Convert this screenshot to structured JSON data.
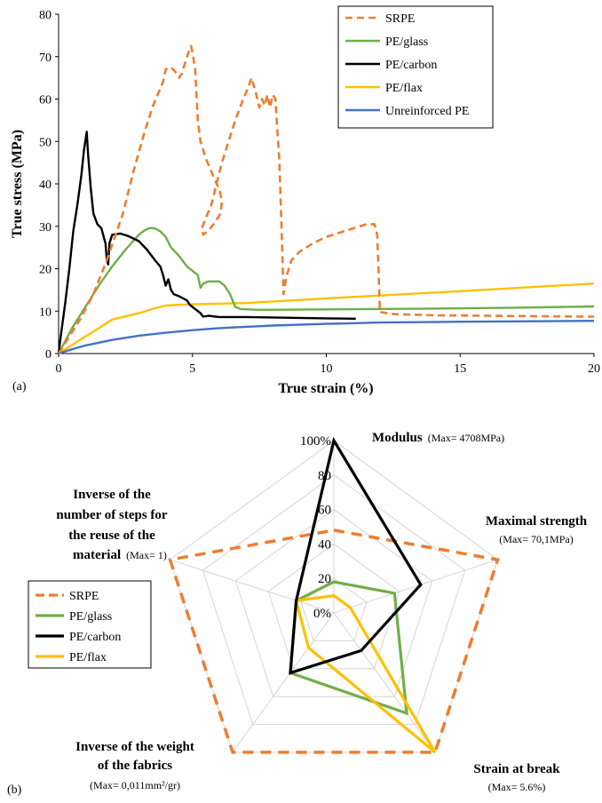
{
  "chart_data": [
    {
      "type": "line",
      "panel_label": "(a)",
      "xlabel": "True strain (%)",
      "ylabel": "True stress (MPa)",
      "xlim": [
        0,
        20
      ],
      "ylim": [
        0,
        80
      ],
      "xticks": [
        "0",
        "5",
        "10",
        "15",
        "20"
      ],
      "yticks": [
        "0",
        "10",
        "20",
        "30",
        "40",
        "50",
        "60",
        "70",
        "80"
      ],
      "grid": false,
      "legend_position": "top-right",
      "series": [
        {
          "name": "SRPE",
          "color": "#ED7D31",
          "style": "dashed",
          "points": [
            [
              0,
              0
            ],
            [
              0.8,
              8
            ],
            [
              1.3,
              14
            ],
            [
              1.8,
              22
            ],
            [
              2.4,
              33
            ],
            [
              2.8,
              43
            ],
            [
              3.2,
              52
            ],
            [
              3.5,
              58
            ],
            [
              3.9,
              64
            ],
            [
              4.0,
              67
            ],
            [
              4.2,
              67.5
            ],
            [
              4.35,
              66.5
            ],
            [
              4.5,
              65
            ],
            [
              4.6,
              66
            ],
            [
              4.75,
              69
            ],
            [
              4.85,
              71
            ],
            [
              4.95,
              72.5
            ],
            [
              5.0,
              71
            ],
            [
              5.1,
              67
            ],
            [
              5.2,
              55
            ],
            [
              5.3,
              50
            ],
            [
              5.5,
              46
            ],
            [
              5.7,
              43
            ],
            [
              5.9,
              40
            ],
            [
              6.0,
              39
            ],
            [
              6.1,
              36
            ],
            [
              6.05,
              33
            ],
            [
              5.85,
              31
            ],
            [
              5.6,
              29
            ],
            [
              5.4,
              28
            ],
            [
              5.35,
              29.5
            ],
            [
              5.5,
              32
            ],
            [
              5.7,
              35
            ],
            [
              5.9,
              40
            ],
            [
              6.1,
              45
            ],
            [
              6.3,
              49
            ],
            [
              6.6,
              55
            ],
            [
              6.9,
              60
            ],
            [
              7.1,
              63
            ],
            [
              7.2,
              65
            ],
            [
              7.35,
              62
            ],
            [
              7.5,
              58
            ],
            [
              7.6,
              60
            ],
            [
              7.7,
              58.5
            ],
            [
              7.8,
              61
            ],
            [
              7.9,
              58
            ],
            [
              8.0,
              61
            ],
            [
              8.1,
              60
            ],
            [
              8.25,
              45
            ],
            [
              8.35,
              25
            ],
            [
              8.4,
              14
            ],
            [
              8.5,
              18
            ],
            [
              8.7,
              22
            ],
            [
              9.0,
              24
            ],
            [
              9.5,
              26
            ],
            [
              10.0,
              27.5
            ],
            [
              10.5,
              28.5
            ],
            [
              11.0,
              29.5
            ],
            [
              11.5,
              30.5
            ],
            [
              11.8,
              30.5
            ],
            [
              11.9,
              28
            ],
            [
              11.95,
              20
            ],
            [
              12.0,
              9.8
            ],
            [
              12.5,
              9.3
            ],
            [
              14,
              9.0
            ],
            [
              16,
              8.9
            ],
            [
              18,
              8.8
            ],
            [
              20,
              8.7
            ]
          ]
        },
        {
          "name": "PE/glass",
          "color": "#70AD47",
          "style": "solid",
          "points": [
            [
              0,
              0
            ],
            [
              0.5,
              6
            ],
            [
              1.0,
              11
            ],
            [
              1.5,
              16
            ],
            [
              2.0,
              20.5
            ],
            [
              2.5,
              24.5
            ],
            [
              3.0,
              28
            ],
            [
              3.2,
              29
            ],
            [
              3.4,
              29.6
            ],
            [
              3.6,
              29.5
            ],
            [
              3.8,
              28.8
            ],
            [
              4.0,
              27.5
            ],
            [
              4.2,
              25
            ],
            [
              4.5,
              23
            ],
            [
              4.8,
              20.5
            ],
            [
              5.0,
              19.5
            ],
            [
              5.2,
              18.5
            ],
            [
              5.3,
              15.5
            ],
            [
              5.4,
              16.5
            ],
            [
              5.6,
              17
            ],
            [
              6.0,
              17
            ],
            [
              6.2,
              16
            ],
            [
              6.4,
              14
            ],
            [
              6.6,
              11
            ],
            [
              6.8,
              10.5
            ],
            [
              7.5,
              10.3
            ],
            [
              10,
              10.4
            ],
            [
              14,
              10.6
            ],
            [
              17,
              10.8
            ],
            [
              20,
              11.1
            ]
          ]
        },
        {
          "name": "PE/carbon",
          "color": "#000000",
          "style": "solid",
          "points": [
            [
              0,
              0
            ],
            [
              0.1,
              5
            ],
            [
              0.25,
              12
            ],
            [
              0.4,
              20
            ],
            [
              0.55,
              29
            ],
            [
              0.7,
              35
            ],
            [
              0.85,
              42
            ],
            [
              0.95,
              48
            ],
            [
              1.05,
              52.3
            ],
            [
              1.1,
              47
            ],
            [
              1.2,
              39
            ],
            [
              1.3,
              33
            ],
            [
              1.45,
              30.5
            ],
            [
              1.6,
              29.5
            ],
            [
              1.75,
              26
            ],
            [
              1.8,
              22
            ],
            [
              1.85,
              21
            ],
            [
              1.9,
              26
            ],
            [
              2.0,
              28
            ],
            [
              2.3,
              28.3
            ],
            [
              2.6,
              27.7
            ],
            [
              3.0,
              26.5
            ],
            [
              3.3,
              24.5
            ],
            [
              3.6,
              22
            ],
            [
              3.8,
              20.5
            ],
            [
              3.9,
              18.5
            ],
            [
              4.0,
              16
            ],
            [
              4.1,
              17.5
            ],
            [
              4.2,
              15
            ],
            [
              4.3,
              14
            ],
            [
              4.5,
              13.5
            ],
            [
              4.8,
              12.5
            ],
            [
              4.9,
              11.5
            ],
            [
              5.1,
              10.5
            ],
            [
              5.3,
              9.5
            ],
            [
              5.4,
              8.7
            ],
            [
              5.6,
              8.9
            ],
            [
              6,
              8.6
            ],
            [
              7,
              8.6
            ],
            [
              8,
              8.5
            ],
            [
              9,
              8.4
            ],
            [
              10,
              8.3
            ],
            [
              11.1,
              8.2
            ]
          ]
        },
        {
          "name": "PE/flax",
          "color": "#FFC000",
          "style": "solid",
          "points": [
            [
              0,
              0
            ],
            [
              0.5,
              2
            ],
            [
              1,
              4
            ],
            [
              2,
              8
            ],
            [
              3,
              9.5
            ],
            [
              3.5,
              10.5
            ],
            [
              4,
              11.3
            ],
            [
              4.5,
              11.5
            ],
            [
              5,
              11.6
            ],
            [
              7,
              11.9
            ],
            [
              10,
              13
            ],
            [
              15,
              14.7
            ],
            [
              20,
              16.5
            ]
          ]
        },
        {
          "name": "Unreinforced PE",
          "color": "#4472C4",
          "style": "solid",
          "points": [
            [
              0,
              0
            ],
            [
              0.5,
              1
            ],
            [
              1,
              1.9
            ],
            [
              2,
              3.2
            ],
            [
              3,
              4.2
            ],
            [
              4,
              4.9
            ],
            [
              5,
              5.5
            ],
            [
              6,
              6.0
            ],
            [
              7,
              6.3
            ],
            [
              8,
              6.6
            ],
            [
              10,
              7.0
            ],
            [
              12,
              7.3
            ],
            [
              15,
              7.5
            ],
            [
              20,
              7.7
            ]
          ]
        }
      ]
    },
    {
      "type": "radar",
      "panel_label": "(b)",
      "rlim": [
        0,
        100
      ],
      "rticks": [
        "0%",
        "20",
        "40",
        "60",
        "80",
        "100%"
      ],
      "legend_position": "left",
      "axes": [
        {
          "title": "Modulus",
          "sub": "(Max= 4708MPa)"
        },
        {
          "title": "Maximal strength",
          "sub": "(Max= 70,1MPa)"
        },
        {
          "title": "Strain at break",
          "sub": "(Max= 5.6%)"
        },
        {
          "title": "Inverse of the weight of the fabrics",
          "sub": "(Max= 0,011mm²/gr)"
        },
        {
          "title": "Inverse of the number of steps for the reuse of the material",
          "sub": "(Max= 1)"
        }
      ],
      "axis_title_lines": {
        "a0": [
          "Modulus"
        ],
        "a1": [
          "Maximal strength"
        ],
        "a2": [
          "Strain at break"
        ],
        "a3": [
          "Inverse of the weight",
          "of the fabrics"
        ],
        "a4": [
          "Inverse of the",
          "number of steps for",
          "the reuse of the",
          "material"
        ]
      },
      "series": [
        {
          "name": "SRPE",
          "color": "#ED7D31",
          "style": "dashed",
          "values": [
            48,
            100,
            100,
            100,
            100
          ]
        },
        {
          "name": "PE/glass",
          "color": "#70AD47",
          "style": "solid",
          "values": [
            18,
            37,
            72,
            43,
            23
          ]
        },
        {
          "name": "PE/carbon",
          "color": "#000000",
          "style": "solid",
          "values": [
            100,
            53,
            27,
            43,
            23
          ]
        },
        {
          "name": "PE/flax",
          "color": "#FFC000",
          "style": "solid",
          "values": [
            10,
            10,
            100,
            25,
            23
          ]
        }
      ]
    }
  ]
}
